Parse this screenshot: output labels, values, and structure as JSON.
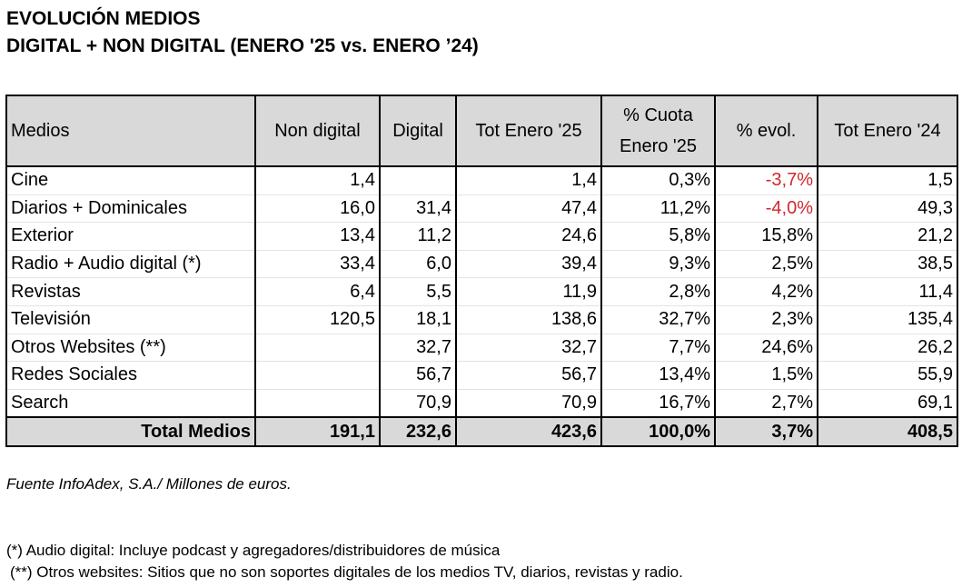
{
  "title_line1": "EVOLUCIÓN MEDIOS",
  "title_line2": "DIGITAL + NON DIGITAL (ENERO '25 vs. ENERO ’24)",
  "table": {
    "headers": {
      "medio": "Medios",
      "non_digital": "Non digital",
      "digital": "Digital",
      "tot_25": "Tot Enero '25",
      "cuota_line1": "% Cuota",
      "cuota_line2": "Enero '25",
      "evol": "% evol.",
      "tot_24": "Tot Enero '24"
    },
    "rows": [
      {
        "medio": "Cine",
        "non_digital": "1,4",
        "digital": "",
        "tot_25": "1,4",
        "cuota": "0,3%",
        "evol": "-3,7%",
        "tot_24": "1,5"
      },
      {
        "medio": "Diarios + Dominicales",
        "non_digital": "16,0",
        "digital": "31,4",
        "tot_25": "47,4",
        "cuota": "11,2%",
        "evol": "-4,0%",
        "tot_24": "49,3"
      },
      {
        "medio": "Exterior",
        "non_digital": "13,4",
        "digital": "11,2",
        "tot_25": "24,6",
        "cuota": "5,8%",
        "evol": "15,8%",
        "tot_24": "21,2"
      },
      {
        "medio": "Radio + Audio digital (*)",
        "non_digital": "33,4",
        "digital": "6,0",
        "tot_25": "39,4",
        "cuota": "9,3%",
        "evol": "2,5%",
        "tot_24": "38,5"
      },
      {
        "medio": "Revistas",
        "non_digital": "6,4",
        "digital": "5,5",
        "tot_25": "11,9",
        "cuota": "2,8%",
        "evol": "4,2%",
        "tot_24": "11,4"
      },
      {
        "medio": "Televisión",
        "non_digital": "120,5",
        "digital": "18,1",
        "tot_25": "138,6",
        "cuota": "32,7%",
        "evol": "2,3%",
        "tot_24": "135,4"
      },
      {
        "medio": "Otros Websites (**)",
        "non_digital": "",
        "digital": "32,7",
        "tot_25": "32,7",
        "cuota": "7,7%",
        "evol": "24,6%",
        "tot_24": "26,2"
      },
      {
        "medio": "Redes Sociales",
        "non_digital": "",
        "digital": "56,7",
        "tot_25": "56,7",
        "cuota": "13,4%",
        "evol": "1,5%",
        "tot_24": "55,9"
      },
      {
        "medio": "Search",
        "non_digital": "",
        "digital": "70,9",
        "tot_25": "70,9",
        "cuota": "16,7%",
        "evol": "2,7%",
        "tot_24": "69,1"
      }
    ],
    "total": {
      "medio": "Total Medios",
      "non_digital": "191,1",
      "digital": "232,6",
      "tot_25": "423,6",
      "cuota": "100,0%",
      "evol": "3,7%",
      "tot_24": "408,5"
    }
  },
  "source": "Fuente InfoAdex, S.A./ Millones de euros.",
  "note1": "(*) Audio digital: Incluye podcast y agregadores/distribuidores de música",
  "note2": "(**) Otros websites: Sitios que no son soportes digitales de los medios TV, diarios, revistas y radio.",
  "colors": {
    "negative": "#d0282e",
    "header_bg": "#d9d9d9"
  }
}
